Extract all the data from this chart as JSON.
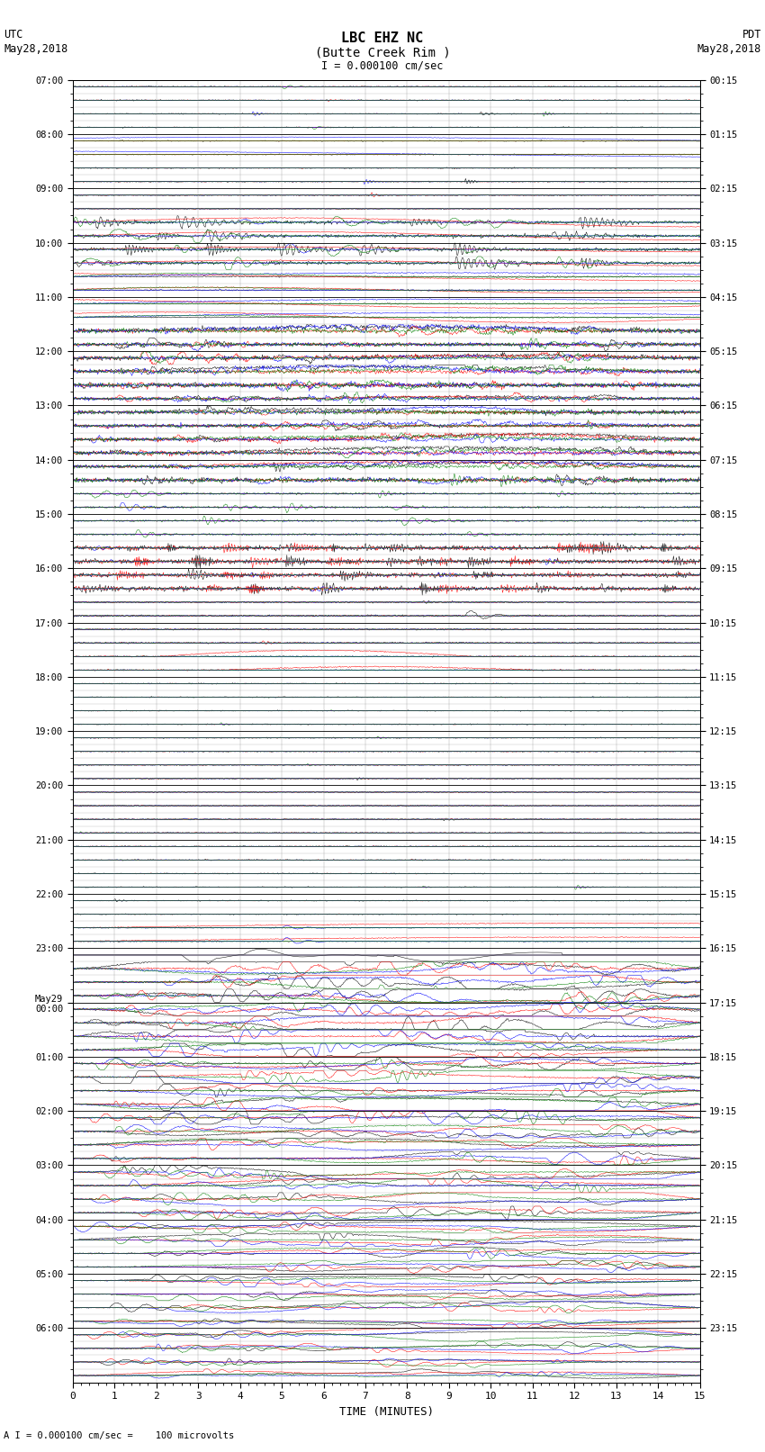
{
  "title_line1": "LBC EHZ NC",
  "title_line2": "(Butte Creek Rim )",
  "scale_label": "I = 0.000100 cm/sec",
  "left_label_line1": "UTC",
  "left_label_line2": "May28,2018",
  "right_label_line1": "PDT",
  "right_label_line2": "May28,2018",
  "bottom_label": "TIME (MINUTES)",
  "bottom_note": "A I = 0.000100 cm/sec =    100 microvolts",
  "xlabel_ticks": [
    0,
    1,
    2,
    3,
    4,
    5,
    6,
    7,
    8,
    9,
    10,
    11,
    12,
    13,
    14,
    15
  ],
  "left_times": [
    "07:00",
    "08:00",
    "09:00",
    "10:00",
    "11:00",
    "12:00",
    "13:00",
    "14:00",
    "15:00",
    "16:00",
    "17:00",
    "18:00",
    "19:00",
    "20:00",
    "21:00",
    "22:00",
    "23:00",
    "May29\n00:00",
    "01:00",
    "02:00",
    "03:00",
    "04:00",
    "05:00",
    "06:00"
  ],
  "right_times": [
    "00:15",
    "01:15",
    "02:15",
    "03:15",
    "04:15",
    "05:15",
    "06:15",
    "07:15",
    "08:15",
    "09:15",
    "10:15",
    "11:15",
    "12:15",
    "13:15",
    "14:15",
    "15:15",
    "16:15",
    "17:15",
    "18:15",
    "19:15",
    "20:15",
    "21:15",
    "22:15",
    "23:15"
  ],
  "colors": [
    "black",
    "red",
    "blue",
    "green"
  ],
  "bg_color": "#ffffff",
  "figsize": [
    8.5,
    16.13
  ],
  "dpi": 100,
  "n_hours": 24,
  "traces_per_hour": 4,
  "minutes_per_trace": 15
}
